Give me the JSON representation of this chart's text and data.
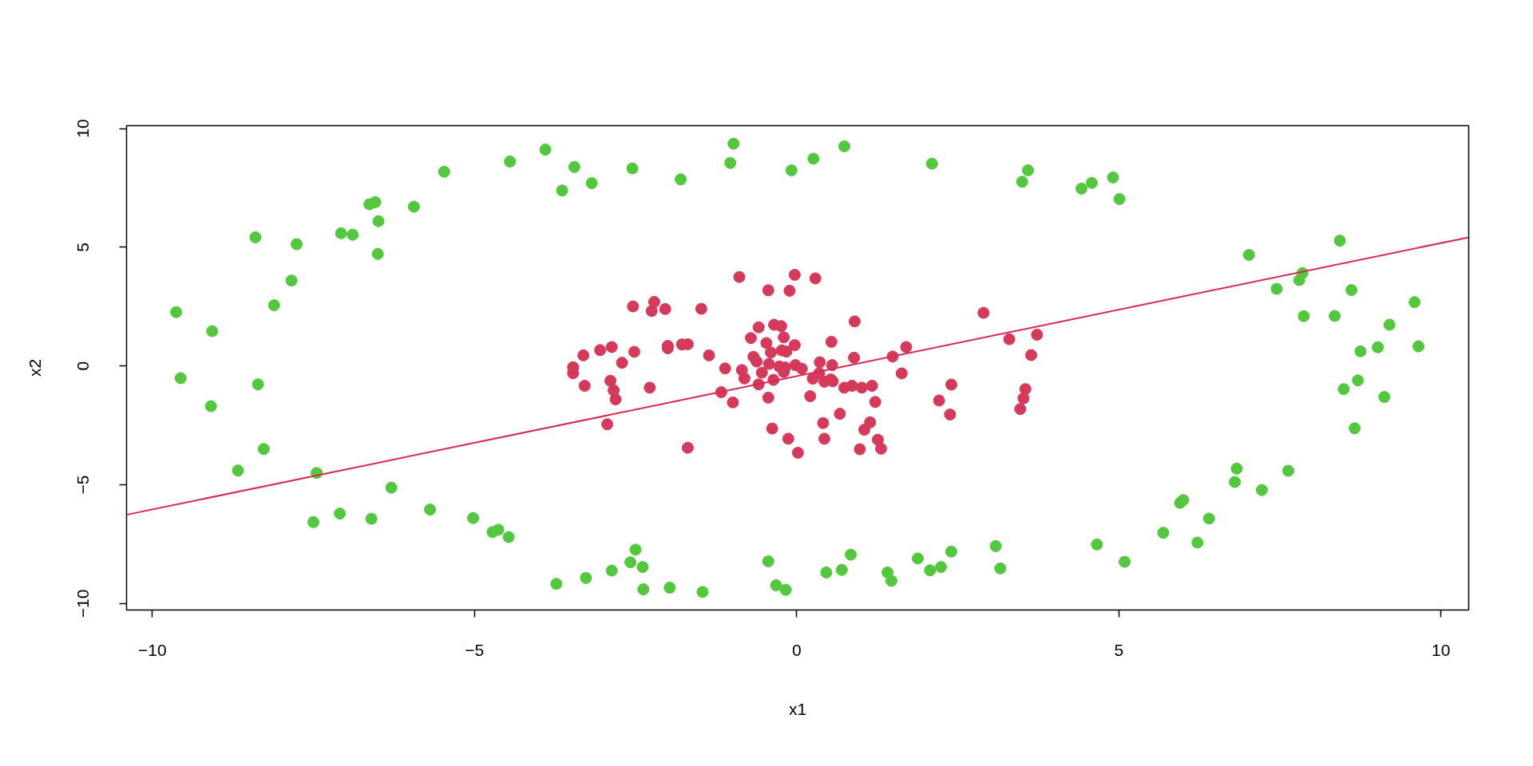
{
  "chart_data": {
    "type": "scatter",
    "xlabel": "x1",
    "ylabel": "x2",
    "xlim": [
      -10.4,
      10.43
    ],
    "ylim": [
      -10.27,
      10.12
    ],
    "xticks": [
      -10,
      -5,
      0,
      5,
      10
    ],
    "yticks": [
      -10,
      -5,
      0,
      5,
      10
    ],
    "marker": "circle",
    "series": [
      {
        "color": "#53c83f",
        "x": [
          -9.63,
          -9.07,
          -9.56,
          -8.36,
          -9.09,
          -8.27,
          -8.67,
          -7.45,
          -6.29,
          -7.5,
          -7.09,
          -6.6,
          -5.69,
          -5.02,
          -4.72,
          -4.63,
          -4.47,
          -3.73,
          -3.27,
          -2.87,
          -2.5,
          -2.58,
          -2.39,
          -2.38,
          -1.97,
          -1.46,
          -0.44,
          -0.32,
          -0.17,
          0.46,
          0.7,
          0.84,
          1.41,
          1.47,
          1.88,
          2.07,
          2.24,
          2.4,
          3.09,
          3.16,
          4.66,
          5.09,
          5.69,
          6.22,
          6.4,
          6.0,
          5.95,
          6.83,
          6.8,
          7.63,
          7.22,
          8.66,
          8.71,
          8.49,
          9.12,
          8.75,
          9.02,
          9.65,
          9.2,
          7.87,
          8.35,
          9.59,
          8.61,
          7.45,
          7.8,
          7.85,
          7.02,
          8.43,
          5.01,
          4.91,
          4.58,
          4.42,
          3.59,
          3.5,
          2.1,
          0.74,
          0.26,
          -0.08,
          -0.98,
          -1.03,
          -1.8,
          -2.55,
          -3.18,
          -3.45,
          -3.64,
          -3.9,
          -4.45,
          -5.47,
          -5.94,
          -6.54,
          -6.63,
          -6.49,
          -6.5,
          -7.07,
          -6.89,
          -8.4,
          -7.76,
          -7.84,
          -8.11
        ],
        "values": [
          2.27,
          1.47,
          -0.51,
          -0.77,
          -1.69,
          -3.49,
          -4.4,
          -4.5,
          -5.12,
          -6.57,
          -6.21,
          -6.43,
          -6.04,
          -6.4,
          -6.99,
          -6.89,
          -7.2,
          -9.17,
          -8.92,
          -8.61,
          -7.73,
          -8.26,
          -8.46,
          -9.4,
          -9.33,
          -9.51,
          -8.22,
          -9.23,
          -9.42,
          -8.69,
          -8.58,
          -7.94,
          -8.69,
          -9.04,
          -8.1,
          -8.6,
          -8.46,
          -7.81,
          -7.58,
          -8.52,
          -7.51,
          -8.24,
          -7.02,
          -7.43,
          -6.42,
          -5.64,
          -5.76,
          -4.32,
          -4.88,
          -4.41,
          -5.22,
          -2.62,
          -0.6,
          -0.97,
          -1.3,
          0.62,
          0.79,
          0.83,
          1.74,
          2.1,
          2.11,
          2.69,
          3.2,
          3.25,
          3.62,
          3.91,
          4.68,
          5.28,
          7.03,
          7.94,
          7.71,
          7.47,
          8.24,
          7.76,
          8.52,
          9.25,
          8.73,
          8.24,
          9.36,
          8.55,
          7.86,
          8.32,
          7.7,
          8.38,
          7.39,
          9.11,
          8.61,
          8.18,
          6.71,
          6.9,
          6.81,
          6.1,
          4.72,
          5.59,
          5.53,
          5.42,
          5.13,
          3.6,
          2.56
        ]
      },
      {
        "color": "#d63a5a",
        "x": [
          -0.89,
          -0.03,
          0.29,
          -0.44,
          -0.11,
          -2.54,
          -2.21,
          -2.25,
          -2.04,
          -1.48,
          0.9,
          2.9,
          -0.59,
          -0.35,
          -0.24,
          -0.71,
          -0.2,
          -0.47,
          -0.03,
          0.54,
          3.3,
          3.73,
          3.64,
          1.7,
          1.49,
          0.89,
          0.36,
          0.55,
          1.63,
          -3.31,
          -3.05,
          -2.87,
          -2.52,
          -2.71,
          -2.0,
          -2.0,
          -1.78,
          -1.69,
          -1.36,
          -1.11,
          -0.85,
          -0.67,
          -0.62,
          -0.4,
          -0.23,
          -0.16,
          -0.43,
          -0.27,
          -0.18,
          -0.02,
          0.08,
          -0.54,
          0.35,
          -3.29,
          -2.89,
          -2.84,
          -2.81,
          -2.94,
          -2.28,
          -1.69,
          -0.81,
          -1.17,
          -0.99,
          -0.59,
          -0.36,
          -0.44,
          -0.38,
          -0.13,
          0.02,
          -0.2,
          0.25,
          0.43,
          0.53,
          0.56,
          0.21,
          0.41,
          0.43,
          0.67,
          0.74,
          0.86,
          1.01,
          1.17,
          1.22,
          1.14,
          1.05,
          1.26,
          1.31,
          0.98,
          2.4,
          2.21,
          2.38,
          3.55,
          3.52,
          3.47,
          -3.47,
          -3.47
        ],
        "values": [
          3.75,
          3.84,
          3.69,
          3.19,
          3.17,
          2.51,
          2.7,
          2.32,
          2.4,
          2.41,
          1.88,
          2.24,
          1.63,
          1.74,
          1.68,
          1.18,
          1.21,
          0.97,
          0.88,
          1.02,
          1.13,
          1.32,
          0.46,
          0.8,
          0.4,
          0.35,
          0.16,
          0.04,
          -0.31,
          0.45,
          0.67,
          0.8,
          0.6,
          0.14,
          0.85,
          0.75,
          0.91,
          0.92,
          0.45,
          -0.1,
          -0.17,
          0.39,
          0.19,
          0.57,
          0.66,
          0.61,
          0.09,
          -0.02,
          -0.06,
          0.04,
          -0.11,
          -0.28,
          -0.3,
          -0.83,
          -0.62,
          -1.02,
          -1.4,
          -2.45,
          -0.91,
          -3.44,
          -0.52,
          -1.1,
          -1.53,
          -0.77,
          -0.58,
          -1.33,
          -2.63,
          -3.06,
          -3.65,
          -0.25,
          -0.53,
          -0.66,
          -0.56,
          -0.64,
          -1.27,
          -2.4,
          -3.06,
          -2.01,
          -0.91,
          -0.83,
          -0.91,
          -0.83,
          -1.51,
          -2.37,
          -2.68,
          -3.1,
          -3.48,
          -3.5,
          -0.78,
          -1.45,
          -2.04,
          -0.97,
          -1.36,
          -1.81,
          -0.05,
          -0.3
        ]
      },
      {
        "type": "line",
        "marker": "none",
        "color": "#d8284f",
        "x": [
          -10.4,
          10.43
        ],
        "values": [
          -6.26,
          5.42
        ]
      }
    ]
  }
}
